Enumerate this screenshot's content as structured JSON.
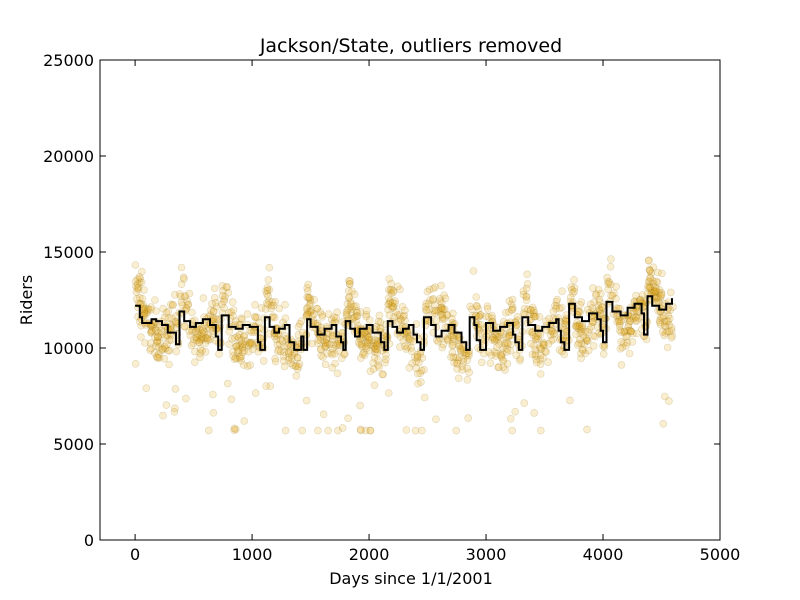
{
  "chart_data": {
    "type": "scatter",
    "title": "Jackson/State, outliers removed",
    "xlabel": "Days since 1/1/2001",
    "ylabel": "Riders",
    "xlim": [
      -300,
      5000
    ],
    "ylim": [
      0,
      25000
    ],
    "xticks": [
      0,
      1000,
      2000,
      3000,
      4000,
      5000
    ],
    "yticks": [
      0,
      5000,
      10000,
      15000,
      20000,
      25000
    ],
    "grid": false,
    "legend": "none",
    "scatter_color": "#e6a817",
    "scatter_alpha": 0.2,
    "line_color": "#000000",
    "series": [
      {
        "kind": "scatter",
        "description": "daily riders",
        "x_range": [
          0,
          4600
        ],
        "typical_band": [
          8500,
          14000
        ],
        "min_approx": 5700,
        "max_approx": 15300
      },
      {
        "kind": "line",
        "description": "fitted step curve",
        "x": [
          0,
          40,
          60,
          140,
          180,
          230,
          280,
          350,
          380,
          420,
          470,
          520,
          580,
          640,
          690,
          710,
          740,
          800,
          860,
          920,
          980,
          1050,
          1070,
          1110,
          1150,
          1190,
          1230,
          1280,
          1320,
          1360,
          1420,
          1440,
          1470,
          1500,
          1560,
          1620,
          1680,
          1720,
          1760,
          1780,
          1800,
          1840,
          1880,
          1920,
          1980,
          2030,
          2100,
          2130,
          2160,
          2200,
          2240,
          2290,
          2340,
          2380,
          2410,
          2440,
          2470,
          2530,
          2570,
          2620,
          2680,
          2730,
          2790,
          2830,
          2860,
          2900,
          2920,
          2950,
          3000,
          3060,
          3120,
          3180,
          3230,
          3250,
          3280,
          3310,
          3360,
          3420,
          3480,
          3540,
          3600,
          3620,
          3640,
          3670,
          3710,
          3760,
          3820,
          3880,
          3950,
          3980,
          4000,
          4030,
          4080,
          4150,
          4210,
          4270,
          4330,
          4350,
          4380,
          4420,
          4480,
          4540,
          4590
        ],
        "y": [
          12200,
          11600,
          11300,
          11500,
          11400,
          11200,
          10800,
          10200,
          11900,
          11400,
          11100,
          11300,
          11500,
          11200,
          10600,
          9900,
          11700,
          11100,
          11000,
          11200,
          11100,
          10300,
          9900,
          11600,
          11100,
          10800,
          11000,
          11200,
          10300,
          9900,
          10600,
          9900,
          11500,
          11100,
          10700,
          11000,
          11200,
          10600,
          10300,
          9900,
          11400,
          11000,
          10600,
          11000,
          11200,
          10800,
          10300,
          9900,
          11400,
          11100,
          10800,
          11000,
          11200,
          10700,
          10300,
          9900,
          11600,
          11200,
          10600,
          10900,
          11200,
          10800,
          10300,
          9900,
          11600,
          11200,
          10400,
          9900,
          11300,
          10900,
          11100,
          11300,
          10700,
          10300,
          9900,
          11600,
          11200,
          10900,
          11100,
          11300,
          11500,
          10900,
          10300,
          9900,
          12300,
          11600,
          11400,
          11800,
          11500,
          10900,
          10300,
          12400,
          11900,
          11700,
          12100,
          12300,
          11800,
          10700,
          12700,
          12200,
          12000,
          12300,
          12600
        ]
      }
    ]
  }
}
